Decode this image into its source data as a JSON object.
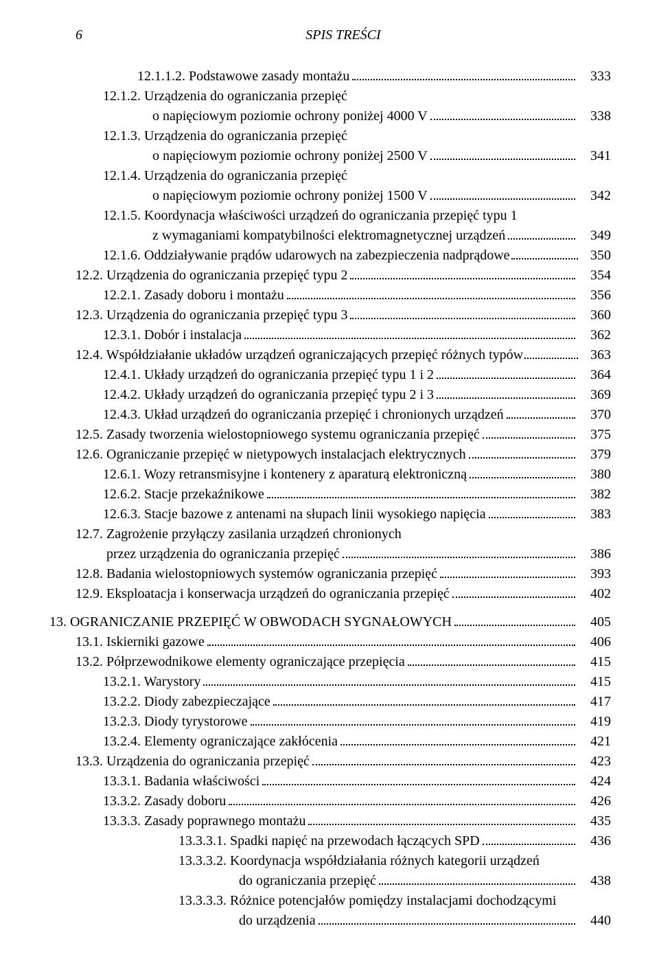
{
  "header": {
    "page": "6",
    "title": "SPIS TREŚCI"
  },
  "rows": [
    {
      "indent": 2,
      "label": "12.1.1.2. Podstawowe zasady montażu",
      "page": "333"
    },
    {
      "indent": 1,
      "label": "12.1.2. Urządzenia do ograniczania przepięć",
      "page": ""
    },
    {
      "indent": "cont1",
      "label": "o napięciowym poziomie ochrony poniżej 4000 V",
      "page": "338"
    },
    {
      "indent": 1,
      "label": "12.1.3. Urządzenia do ograniczania przepięć",
      "page": ""
    },
    {
      "indent": "cont1",
      "label": "o napięciowym poziomie ochrony poniżej 2500 V",
      "page": "341"
    },
    {
      "indent": 1,
      "label": "12.1.4. Urządzenia do ograniczania przepięć",
      "page": ""
    },
    {
      "indent": "cont1",
      "label": "o napięciowym poziomie ochrony poniżej 1500 V",
      "page": "342"
    },
    {
      "indent": 1,
      "label": "12.1.5. Koordynacja właściwości urządzeń do ograniczania przepięć typu 1",
      "page": ""
    },
    {
      "indent": "cont1",
      "label": "z wymaganiami kompatybilności elektromagnetycznej urządzeń",
      "page": "349"
    },
    {
      "indent": 1,
      "label": "12.1.6. Oddziaływanie prądów udarowych na zabezpieczenia nadprądowe",
      "page": "350",
      "tight": true
    },
    {
      "indent": 0,
      "label": "12.2. Urządzenia do ograniczania przepięć typu 2",
      "page": "354"
    },
    {
      "indent": 1,
      "label": "12.2.1. Zasady doboru i montażu",
      "page": "356"
    },
    {
      "indent": 0,
      "label": "12.3. Urządzenia do ograniczania przepięć typu 3",
      "page": "360"
    },
    {
      "indent": 1,
      "label": "12.3.1. Dobór i instalacja",
      "page": "362"
    },
    {
      "indent": 0,
      "label": "12.4. Współdziałanie układów urządzeń ograniczających przepięć różnych typów",
      "page": "363",
      "tight": true
    },
    {
      "indent": 1,
      "label": "12.4.1. Układy urządzeń do ograniczania przepięć typu 1 i 2",
      "page": "364"
    },
    {
      "indent": 1,
      "label": "12.4.2. Układy urządzeń do ograniczania przepięć typu 2 i 3",
      "page": "369"
    },
    {
      "indent": 1,
      "label": "12.4.3. Układ urządzeń do ograniczania przepięć i chronionych urządzeń",
      "page": "370"
    },
    {
      "indent": 0,
      "label": "12.5. Zasady tworzenia wielostopniowego systemu ograniczania przepięć",
      "page": "375"
    },
    {
      "indent": 0,
      "label": "12.6. Ograniczanie przepięć w nietypowych instalacjach elektrycznych",
      "page": "379"
    },
    {
      "indent": 1,
      "label": "12.6.1. Wozy retransmisyjne i kontenery z aparaturą elektroniczną",
      "page": "380"
    },
    {
      "indent": 1,
      "label": "12.6.2. Stacje przekaźnikowe",
      "page": "382"
    },
    {
      "indent": 1,
      "label": "12.6.3. Stacje bazowe z antenami na słupach linii wysokiego napięcia",
      "page": "383"
    },
    {
      "indent": 0,
      "label": "12.7. Zagrożenie przyłączy zasilania urządzeń chronionych",
      "page": ""
    },
    {
      "indent": 0,
      "label": "         przez urządzenia do ograniczania przepięć",
      "page": "386"
    },
    {
      "indent": 0,
      "label": "12.8. Badania wielostopniowych systemów ograniczania przepięć",
      "page": "393"
    },
    {
      "indent": 0,
      "label": "12.9. Eksploatacja i konserwacja urządzeń do ograniczania przepięć",
      "page": "402"
    },
    {
      "gap": true
    },
    {
      "indent": -1,
      "label": "13. OGRANICZANIE PRZEPIĘĆ W OBWODACH SYGNAŁOWYCH",
      "page": "405"
    },
    {
      "indent": 0,
      "label": "13.1. Iskierniki gazowe",
      "page": "406"
    },
    {
      "indent": 0,
      "label": "13.2. Półprzewodnikowe elementy ograniczające przepięcia",
      "page": "415"
    },
    {
      "indent": 1,
      "label": "13.2.1. Warystory",
      "page": "415"
    },
    {
      "indent": 1,
      "label": "13.2.2. Diody zabezpieczające",
      "page": "417"
    },
    {
      "indent": 1,
      "label": "13.2.3. Diody tyrystorowe",
      "page": "419"
    },
    {
      "indent": 1,
      "label": "13.2.4. Elementy ograniczające zakłócenia",
      "page": "421"
    },
    {
      "indent": 0,
      "label": "13.3. Urządzenia do ograniczania przepięć",
      "page": "423"
    },
    {
      "indent": 1,
      "label": "13.3.1. Badania właściwości",
      "page": "424"
    },
    {
      "indent": 1,
      "label": "13.3.2. Zasady doboru",
      "page": "426"
    },
    {
      "indent": 1,
      "label": "13.3.3. Zasady poprawnego montażu",
      "page": "435"
    },
    {
      "indent": 3,
      "label": "13.3.3.1. Spadki napięć na przewodach łączących SPD",
      "page": "436"
    },
    {
      "indent": 3,
      "label": "13.3.3.2. Koordynacja współdziałania różnych kategorii urządzeń",
      "page": ""
    },
    {
      "indent": 4,
      "label": "    do ograniczania przepięć",
      "page": "438"
    },
    {
      "indent": 3,
      "label": "13.3.3.3. Różnice potencjałów pomiędzy instalacjami dochodzącymi",
      "page": ""
    },
    {
      "indent": 4,
      "label": "    do urządzenia",
      "page": "440"
    }
  ]
}
